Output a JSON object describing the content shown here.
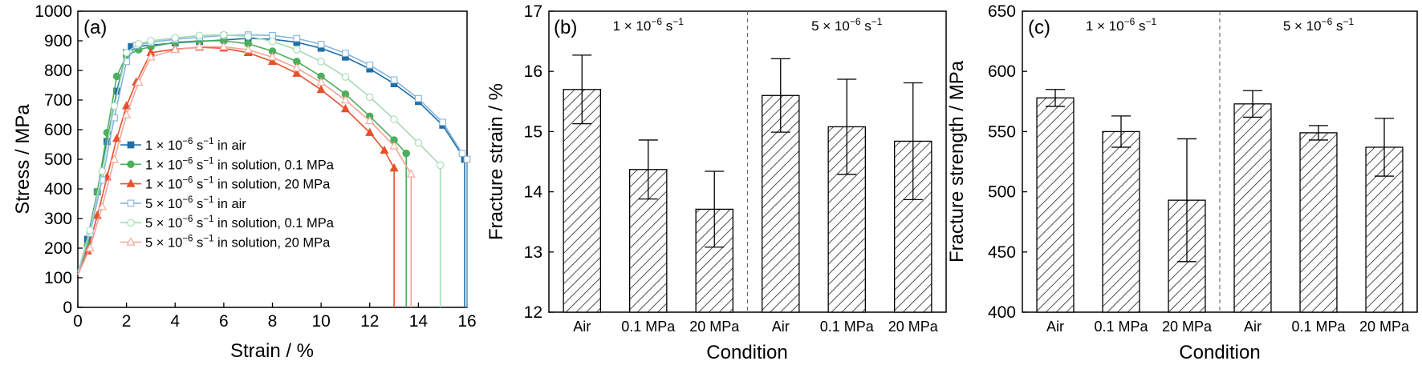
{
  "chart_data": [
    {
      "type": "line",
      "panel_label": "(a)",
      "xlabel": "Strain / %",
      "ylabel": "Stress / MPa",
      "xlim": [
        0,
        16
      ],
      "ylim": [
        0,
        1000
      ],
      "xticks": [
        "0",
        "2",
        "4",
        "6",
        "8",
        "10",
        "12",
        "14",
        "16"
      ],
      "yticks": [
        "0",
        "100",
        "200",
        "300",
        "400",
        "500",
        "600",
        "700",
        "800",
        "900",
        "1000"
      ],
      "legend_position": "lower-left",
      "series": [
        {
          "legend_prefix": "1 × 10",
          "legend_exp": "−6",
          "legend_suffix": " s",
          "legend_sup2": "−1",
          "legend_tail": " in air",
          "color": "#1f6ea6",
          "marker": "square",
          "filled": true,
          "end": 15.9,
          "points": [
            [
              0,
              110
            ],
            [
              0.4,
              230
            ],
            [
              0.8,
              390
            ],
            [
              1.2,
              560
            ],
            [
              1.6,
              730
            ],
            [
              2.0,
              860
            ],
            [
              2.2,
              880
            ],
            [
              3,
              885
            ],
            [
              4,
              893
            ],
            [
              5,
              898
            ],
            [
              6,
              903
            ],
            [
              7,
              908
            ],
            [
              8,
              905
            ],
            [
              9,
              895
            ],
            [
              10,
              875
            ],
            [
              11,
              845
            ],
            [
              12,
              805
            ],
            [
              13,
              755
            ],
            [
              14,
              695
            ],
            [
              15,
              615
            ],
            [
              15.9,
              500
            ]
          ]
        },
        {
          "legend_prefix": "1 × 10",
          "legend_exp": "−6",
          "legend_suffix": " s",
          "legend_sup2": "−1",
          "legend_tail": " in solution, 0.1 MPa",
          "color": "#4caf5b",
          "marker": "circle",
          "filled": true,
          "end": 13.5,
          "points": [
            [
              0,
              110
            ],
            [
              0.4,
              210
            ],
            [
              0.8,
              390
            ],
            [
              1.2,
              590
            ],
            [
              1.6,
              780
            ],
            [
              2.0,
              850
            ],
            [
              2.5,
              870
            ],
            [
              3,
              880
            ],
            [
              4,
              895
            ],
            [
              5,
              900
            ],
            [
              6,
              900
            ],
            [
              7,
              890
            ],
            [
              8,
              865
            ],
            [
              9,
              830
            ],
            [
              10,
              780
            ],
            [
              11,
              720
            ],
            [
              12,
              645
            ],
            [
              13,
              565
            ],
            [
              13.5,
              520
            ]
          ]
        },
        {
          "legend_prefix": "1 × 10",
          "legend_exp": "−6",
          "legend_suffix": " s",
          "legend_sup2": "−1",
          "legend_tail": " in solution, 20 MPa",
          "color": "#e8502a",
          "marker": "triangle",
          "filled": true,
          "end": 13.0,
          "points": [
            [
              0,
              110
            ],
            [
              0.4,
              190
            ],
            [
              0.8,
              310
            ],
            [
              1.2,
              440
            ],
            [
              1.6,
              570
            ],
            [
              2.0,
              680
            ],
            [
              2.4,
              760
            ],
            [
              3,
              860
            ],
            [
              4,
              872
            ],
            [
              5,
              878
            ],
            [
              6,
              875
            ],
            [
              7,
              860
            ],
            [
              8,
              830
            ],
            [
              9,
              790
            ],
            [
              10,
              735
            ],
            [
              11,
              670
            ],
            [
              12,
              590
            ],
            [
              12.6,
              530
            ],
            [
              13.0,
              470
            ]
          ]
        },
        {
          "legend_prefix": "5 × 10",
          "legend_exp": "−6",
          "legend_suffix": " s",
          "legend_sup2": "−1",
          "legend_tail": " in air",
          "color": "#86b4dc",
          "marker": "square",
          "filled": false,
          "end": 16.0,
          "points": [
            [
              0,
              110
            ],
            [
              0.5,
              250
            ],
            [
              1.0,
              430
            ],
            [
              1.5,
              640
            ],
            [
              2.0,
              830
            ],
            [
              2.4,
              885
            ],
            [
              3,
              895
            ],
            [
              4,
              905
            ],
            [
              5,
              912
            ],
            [
              6,
              918
            ],
            [
              7,
              920
            ],
            [
              8,
              918
            ],
            [
              9,
              908
            ],
            [
              10,
              888
            ],
            [
              11,
              858
            ],
            [
              12,
              818
            ],
            [
              13,
              768
            ],
            [
              14,
              705
            ],
            [
              15,
              625
            ],
            [
              15.8,
              520
            ],
            [
              16.0,
              500
            ]
          ]
        },
        {
          "legend_prefix": "5 × 10",
          "legend_exp": "−6",
          "legend_suffix": " s",
          "legend_sup2": "−1",
          "legend_tail": " in solution, 0.1 MPa",
          "color": "#a6dbb5",
          "marker": "circle",
          "filled": false,
          "end": 14.9,
          "points": [
            [
              0,
              120
            ],
            [
              0.5,
              260
            ],
            [
              1.0,
              460
            ],
            [
              1.5,
              680
            ],
            [
              2.0,
              860
            ],
            [
              2.5,
              890
            ],
            [
              3,
              900
            ],
            [
              4,
              910
            ],
            [
              5,
              918
            ],
            [
              6,
              920
            ],
            [
              7,
              915
            ],
            [
              8,
              898
            ],
            [
              9,
              870
            ],
            [
              10,
              830
            ],
            [
              11,
              778
            ],
            [
              12,
              710
            ],
            [
              13,
              635
            ],
            [
              14,
              555
            ],
            [
              14.9,
              480
            ]
          ]
        },
        {
          "legend_prefix": "5 × 10",
          "legend_exp": "−6",
          "legend_suffix": " s",
          "legend_sup2": "−1",
          "legend_tail": " in solution, 20 MPa",
          "color": "#f2a596",
          "marker": "triangle",
          "filled": false,
          "end": 13.7,
          "points": [
            [
              0,
              110
            ],
            [
              0.5,
              200
            ],
            [
              1.0,
              340
            ],
            [
              1.5,
              500
            ],
            [
              2.0,
              650
            ],
            [
              2.5,
              760
            ],
            [
              3,
              845
            ],
            [
              4,
              870
            ],
            [
              5,
              880
            ],
            [
              6,
              880
            ],
            [
              7,
              870
            ],
            [
              8,
              845
            ],
            [
              9,
              808
            ],
            [
              10,
              760
            ],
            [
              11,
              700
            ],
            [
              12,
              630
            ],
            [
              13,
              545
            ],
            [
              13.7,
              450
            ]
          ]
        }
      ]
    },
    {
      "type": "bar",
      "panel_label": "(b)",
      "xlabel": "Condition",
      "ylabel": "Fracture strain / %",
      "ylim": [
        12,
        17
      ],
      "yticks": [
        "12",
        "13",
        "14",
        "15",
        "16",
        "17"
      ],
      "groups": [
        {
          "prefix": "1 × 10",
          "exp": "−6",
          "mid": " s",
          "exp2": "−1"
        },
        {
          "prefix": "5 × 10",
          "exp": "−6",
          "mid": " s",
          "exp2": "−1"
        }
      ],
      "categories": [
        "Air",
        "0.1 MPa",
        "20 MPa",
        "Air",
        "0.1 MPa",
        "20 MPa"
      ],
      "values": [
        15.7,
        14.37,
        13.71,
        15.6,
        15.08,
        14.84
      ],
      "errors": [
        0.57,
        0.49,
        0.63,
        0.61,
        0.79,
        0.97
      ]
    },
    {
      "type": "bar",
      "panel_label": "(c)",
      "xlabel": "Condition",
      "ylabel": "Fracture strength / MPa",
      "ylim": [
        400,
        650
      ],
      "yticks": [
        "400",
        "450",
        "500",
        "550",
        "600",
        "650"
      ],
      "groups": [
        {
          "prefix": "1 × 10",
          "exp": "−6",
          "mid": " s",
          "exp2": "−1"
        },
        {
          "prefix": "5 × 10",
          "exp": "−6",
          "mid": " s",
          "exp2": "−1"
        }
      ],
      "categories": [
        "Air",
        "0.1 MPa",
        "20 MPa",
        "Air",
        "0.1 MPa",
        "20 MPa"
      ],
      "values": [
        578,
        550,
        493,
        573,
        549,
        537
      ],
      "errors": [
        7,
        13,
        51,
        11,
        6,
        24
      ]
    }
  ]
}
